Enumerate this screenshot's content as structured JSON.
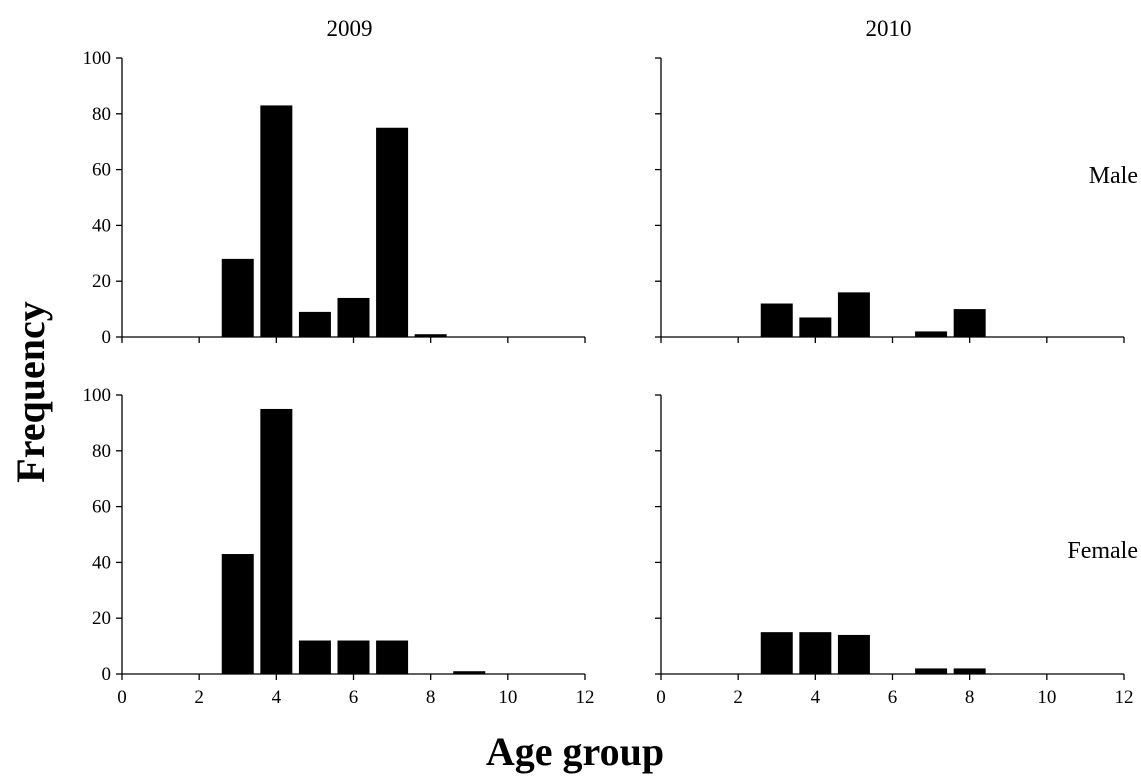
{
  "figure": {
    "ylabel": "Frequency",
    "xlabel": "Age group",
    "column_titles": [
      "2009",
      "2010"
    ],
    "row_labels": [
      "Male",
      "Female"
    ]
  },
  "chart_data": [
    {
      "type": "bar",
      "panel": "2009 Male",
      "title": "2009",
      "row_label": "",
      "x": [
        3,
        4,
        5,
        6,
        7,
        8
      ],
      "values": [
        28,
        83,
        9,
        14,
        75,
        1
      ],
      "xlim": [
        0,
        12
      ],
      "ylim": [
        0,
        100
      ],
      "xticks": [
        0,
        2,
        4,
        6,
        8,
        10,
        12
      ],
      "yticks": [
        0,
        20,
        40,
        60,
        80,
        100
      ],
      "show_xtick_labels": false,
      "show_ytick_labels": true,
      "bar_color": "#000000",
      "grid": false
    },
    {
      "type": "bar",
      "panel": "2010 Male",
      "title": "2010",
      "row_label": "Male",
      "x": [
        3,
        4,
        5,
        7,
        8
      ],
      "values": [
        12,
        7,
        16,
        2,
        10
      ],
      "xlim": [
        0,
        12
      ],
      "ylim": [
        0,
        100
      ],
      "xticks": [
        0,
        2,
        4,
        6,
        8,
        10,
        12
      ],
      "yticks": [
        0,
        20,
        40,
        60,
        80,
        100
      ],
      "show_xtick_labels": false,
      "show_ytick_labels": false,
      "bar_color": "#000000",
      "grid": false
    },
    {
      "type": "bar",
      "panel": "2009 Female",
      "title": "",
      "row_label": "",
      "x": [
        3,
        4,
        5,
        6,
        7,
        9
      ],
      "values": [
        43,
        95,
        12,
        12,
        12,
        1
      ],
      "xlim": [
        0,
        12
      ],
      "ylim": [
        0,
        100
      ],
      "xticks": [
        0,
        2,
        4,
        6,
        8,
        10,
        12
      ],
      "yticks": [
        0,
        20,
        40,
        60,
        80,
        100
      ],
      "show_xtick_labels": true,
      "show_ytick_labels": true,
      "bar_color": "#000000",
      "grid": false
    },
    {
      "type": "bar",
      "panel": "2010 Female",
      "title": "",
      "row_label": "Female",
      "x": [
        3,
        4,
        5,
        7,
        8
      ],
      "values": [
        15,
        15,
        14,
        2,
        2
      ],
      "xlim": [
        0,
        12
      ],
      "ylim": [
        0,
        100
      ],
      "xticks": [
        0,
        2,
        4,
        6,
        8,
        10,
        12
      ],
      "yticks": [
        0,
        20,
        40,
        60,
        80,
        100
      ],
      "show_xtick_labels": true,
      "show_ytick_labels": false,
      "bar_color": "#000000",
      "grid": false
    }
  ]
}
